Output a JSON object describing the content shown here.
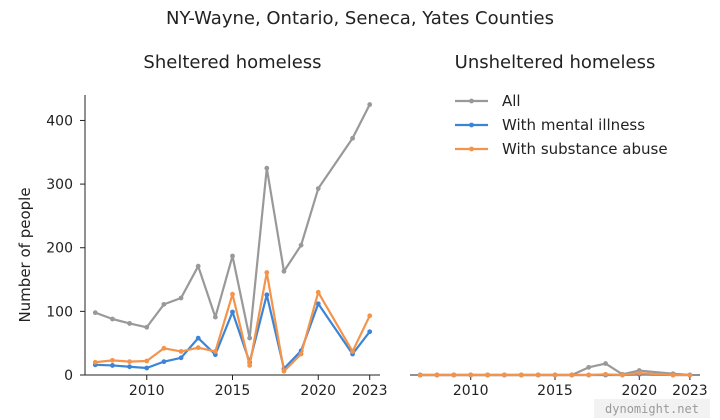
{
  "figure": {
    "title": "NY-Wayne, Ontario, Seneca, Yates Counties",
    "watermark": "dynomight.net"
  },
  "chart_data": [
    {
      "type": "line",
      "title": "Sheltered homeless",
      "xlabel": "",
      "ylabel": "Number of people",
      "xlim": [
        2006.4,
        2023.6
      ],
      "ylim": [
        0,
        440
      ],
      "xticks": [
        2010,
        2015,
        2020,
        2023
      ],
      "yticks": [
        0,
        100,
        200,
        300,
        400
      ],
      "grid": false,
      "series": [
        {
          "name": "All",
          "color": "#999999",
          "x": [
            2007,
            2008,
            2009,
            2010,
            2011,
            2012,
            2013,
            2014,
            2015,
            2016,
            2017,
            2018,
            2019,
            2020,
            2022,
            2023
          ],
          "y": [
            98,
            88,
            81,
            75,
            111,
            121,
            171,
            91,
            187,
            58,
            325,
            163,
            204,
            293,
            372,
            425
          ]
        },
        {
          "name": "With mental illness",
          "color": "#3b84d6",
          "x": [
            2007,
            2008,
            2009,
            2010,
            2011,
            2012,
            2013,
            2014,
            2015,
            2016,
            2017,
            2018,
            2019,
            2020,
            2022,
            2023
          ],
          "y": [
            16,
            15,
            13,
            11,
            21,
            27,
            58,
            32,
            99,
            20,
            126,
            10,
            38,
            112,
            33,
            68
          ]
        },
        {
          "name": "With substance abuse",
          "color": "#f4944b",
          "x": [
            2007,
            2008,
            2009,
            2010,
            2011,
            2012,
            2013,
            2014,
            2015,
            2016,
            2017,
            2018,
            2019,
            2020,
            2022,
            2023
          ],
          "y": [
            20,
            23,
            21,
            22,
            42,
            37,
            43,
            37,
            127,
            15,
            161,
            6,
            33,
            130,
            37,
            93
          ]
        }
      ]
    },
    {
      "type": "line",
      "title": "Unsheltered homeless",
      "xlabel": "",
      "ylabel": "",
      "xlim": [
        2006.4,
        2023.6
      ],
      "ylim": [
        0,
        440
      ],
      "xticks": [
        2010,
        2015,
        2020,
        2023
      ],
      "grid": false,
      "legend": {
        "placement": "top-right"
      },
      "series": [
        {
          "name": "All",
          "color": "#999999",
          "x": [
            2007,
            2008,
            2009,
            2010,
            2011,
            2012,
            2013,
            2014,
            2015,
            2016,
            2017,
            2018,
            2019,
            2020,
            2022,
            2023
          ],
          "y": [
            0,
            0,
            0,
            0,
            0,
            0,
            0,
            0,
            0,
            0,
            12,
            18,
            1,
            7,
            2,
            0
          ]
        },
        {
          "name": "With mental illness",
          "color": "#3b84d6",
          "x": [
            2007,
            2008,
            2009,
            2010,
            2011,
            2012,
            2013,
            2014,
            2015,
            2016,
            2017,
            2018,
            2019,
            2020,
            2022,
            2023
          ],
          "y": [
            0,
            0,
            0,
            0,
            0,
            0,
            0,
            0,
            0,
            0,
            0,
            0,
            0,
            1,
            0,
            0
          ]
        },
        {
          "name": "With substance abuse",
          "color": "#f4944b",
          "x": [
            2007,
            2008,
            2009,
            2010,
            2011,
            2012,
            2013,
            2014,
            2015,
            2016,
            2017,
            2018,
            2019,
            2020,
            2022,
            2023
          ],
          "y": [
            0,
            0,
            0,
            0,
            0,
            0,
            0,
            0,
            0,
            0,
            0,
            1,
            0,
            3,
            0,
            0
          ]
        }
      ]
    }
  ]
}
